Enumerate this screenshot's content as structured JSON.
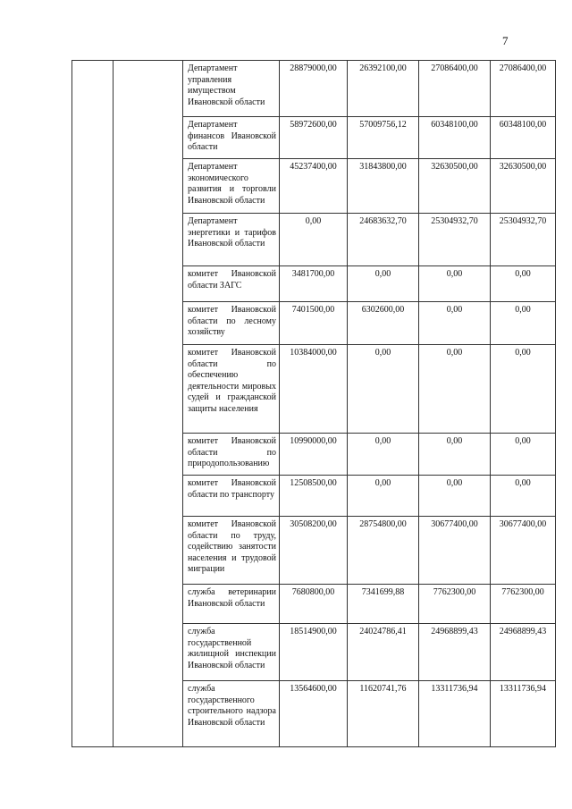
{
  "page_number": "7",
  "rows": [
    {
      "name": "Департамент управления имуществом Ивановской области",
      "values": [
        "28879000,00",
        "26392100,00",
        "27086400,00",
        "27086400,00"
      ]
    },
    {
      "name": "Департамент финансов Ивановской области",
      "values": [
        "58972600,00",
        "57009756,12",
        "60348100,00",
        "60348100,00"
      ]
    },
    {
      "name": "Департамент экономического развития и торговли Ивановской области",
      "values": [
        "45237400,00",
        "31843800,00",
        "32630500,00",
        "32630500,00"
      ]
    },
    {
      "name": "Департамент энергетики и тарифов Ивановской области",
      "values": [
        "0,00",
        "24683632,70",
        "25304932,70",
        "25304932,70"
      ]
    },
    {
      "name": "комитет Ивановской области ЗАГС",
      "values": [
        "3481700,00",
        "0,00",
        "0,00",
        "0,00"
      ]
    },
    {
      "name": "комитет Ивановской области по лесному хозяйству",
      "values": [
        "7401500,00",
        "6302600,00",
        "0,00",
        "0,00"
      ]
    },
    {
      "name": "комитет Ивановской области по обеспечению деятельности мировых судей и гражданской защиты населения",
      "values": [
        "10384000,00",
        "0,00",
        "0,00",
        "0,00"
      ]
    },
    {
      "name": "комитет Ивановской области по природопользованию",
      "values": [
        "10990000,00",
        "0,00",
        "0,00",
        "0,00"
      ]
    },
    {
      "name": "комитет Ивановской области по транспорту",
      "values": [
        "12508500,00",
        "0,00",
        "0,00",
        "0,00"
      ]
    },
    {
      "name": "комитет Ивановской области по труду, содействию занятости населения и трудовой миграции",
      "values": [
        "30508200,00",
        "28754800,00",
        "30677400,00",
        "30677400,00"
      ]
    },
    {
      "name": "служба ветеринарии Ивановской области",
      "values": [
        "7680800,00",
        "7341699,88",
        "7762300,00",
        "7762300,00"
      ]
    },
    {
      "name": "служба государственной жилищной инспекции Ивановской области",
      "values": [
        "18514900,00",
        "24024786,41",
        "24968899,43",
        "24968899,43"
      ]
    },
    {
      "name": "служба государственного строительного надзора Ивановской области",
      "values": [
        "13564600,00",
        "11620741,76",
        "13311736,94",
        "13311736,94"
      ]
    }
  ]
}
